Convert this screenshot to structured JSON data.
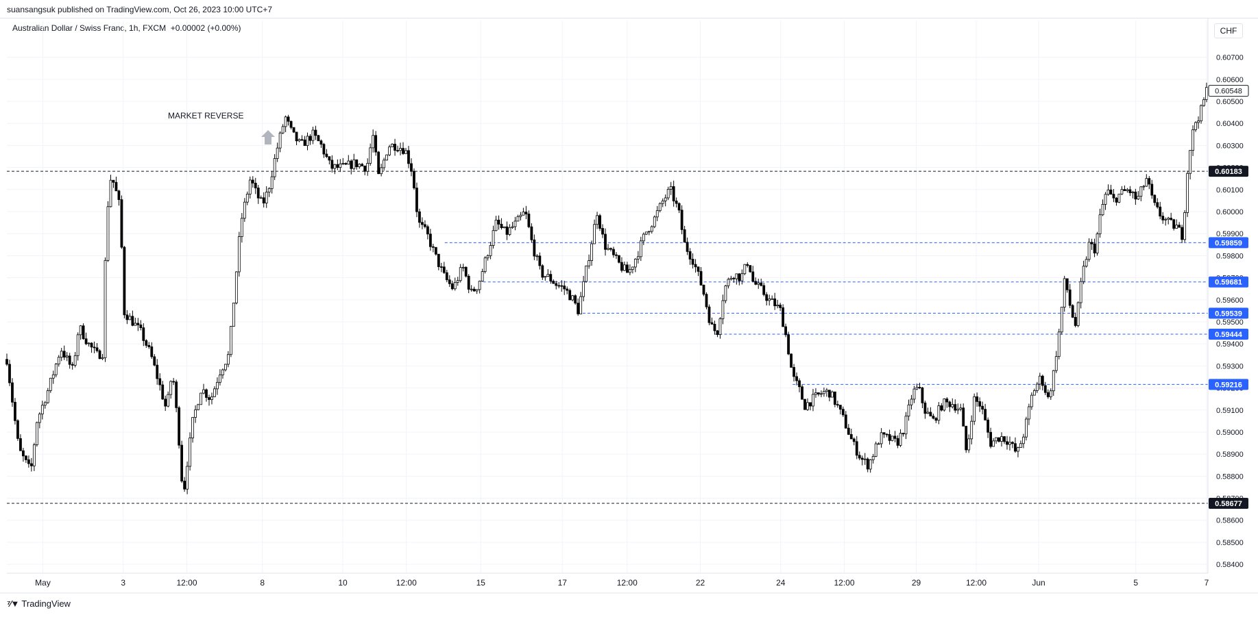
{
  "header": {
    "published": "suansangsuk published on TradingView.com, Oct 26, 2023 10:00 UTC+7",
    "symbol": "Australian Dollar / Swiss Franc, 1h, FXCM",
    "change": "+0.00002 (+0.00%)",
    "currency": "CHF"
  },
  "footer": {
    "brand": "TradingView",
    "logo_icon": "tradingview-logo-icon"
  },
  "chart_data": {
    "type": "candlestick",
    "title": "Australian Dollar / Swiss Franc, 1h, FXCM",
    "ylim": [
      0.5836,
      0.6082
    ],
    "grid": true,
    "y_ticks": [
      "0.60700",
      "0.60600",
      "0.60500",
      "0.60400",
      "0.60300",
      "0.60200",
      "0.60100",
      "0.60000",
      "0.59900",
      "0.59800",
      "0.59700",
      "0.59600",
      "0.59500",
      "0.59400",
      "0.59300",
      "0.59200",
      "0.59100",
      "0.59000",
      "0.58900",
      "0.58800",
      "0.58700",
      "0.58600",
      "0.58500",
      "0.58400"
    ],
    "x_ticks": [
      {
        "label": "May",
        "pos": 0.03
      },
      {
        "label": "3",
        "pos": 0.097
      },
      {
        "label": "12:00",
        "pos": 0.15
      },
      {
        "label": "8",
        "pos": 0.213
      },
      {
        "label": "10",
        "pos": 0.28
      },
      {
        "label": "12:00",
        "pos": 0.333
      },
      {
        "label": "15",
        "pos": 0.395
      },
      {
        "label": "17",
        "pos": 0.463
      },
      {
        "label": "12:00",
        "pos": 0.517
      },
      {
        "label": "22",
        "pos": 0.578
      },
      {
        "label": "24",
        "pos": 0.645
      },
      {
        "label": "12:00",
        "pos": 0.698
      },
      {
        "label": "29",
        "pos": 0.758
      },
      {
        "label": "12:00",
        "pos": 0.808
      },
      {
        "label": "Jun",
        "pos": 0.86
      },
      {
        "label": "5",
        "pos": 0.941
      },
      {
        "label": "7",
        "pos": 1.0
      }
    ],
    "price_path": [
      [
        0.0,
        0.5933
      ],
      [
        0.01,
        0.5892
      ],
      [
        0.02,
        0.5882
      ],
      [
        0.025,
        0.5905
      ],
      [
        0.035,
        0.592
      ],
      [
        0.045,
        0.5938
      ],
      [
        0.055,
        0.5928
      ],
      [
        0.06,
        0.5948
      ],
      [
        0.068,
        0.594
      ],
      [
        0.075,
        0.5935
      ],
      [
        0.08,
        0.5936
      ],
      [
        0.083,
        0.5997
      ],
      [
        0.087,
        0.6017
      ],
      [
        0.093,
        0.6005
      ],
      [
        0.095,
        0.5998
      ],
      [
        0.097,
        0.5955
      ],
      [
        0.105,
        0.595
      ],
      [
        0.112,
        0.5945
      ],
      [
        0.12,
        0.5935
      ],
      [
        0.128,
        0.592
      ],
      [
        0.133,
        0.591
      ],
      [
        0.138,
        0.5928
      ],
      [
        0.143,
        0.59
      ],
      [
        0.147,
        0.587
      ],
      [
        0.15,
        0.5885
      ],
      [
        0.155,
        0.5905
      ],
      [
        0.162,
        0.592
      ],
      [
        0.17,
        0.5915
      ],
      [
        0.178,
        0.5928
      ],
      [
        0.185,
        0.5935
      ],
      [
        0.19,
        0.5965
      ],
      [
        0.195,
        0.5995
      ],
      [
        0.203,
        0.6015
      ],
      [
        0.208,
        0.6008
      ],
      [
        0.213,
        0.6003
      ],
      [
        0.218,
        0.601
      ],
      [
        0.225,
        0.6028
      ],
      [
        0.232,
        0.6043
      ],
      [
        0.238,
        0.6035
      ],
      [
        0.245,
        0.603
      ],
      [
        0.255,
        0.6035
      ],
      [
        0.262,
        0.603
      ],
      [
        0.27,
        0.602
      ],
      [
        0.28,
        0.602
      ],
      [
        0.29,
        0.6022
      ],
      [
        0.3,
        0.602
      ],
      [
        0.305,
        0.6035
      ],
      [
        0.31,
        0.6015
      ],
      [
        0.318,
        0.603
      ],
      [
        0.325,
        0.603
      ],
      [
        0.332,
        0.6028
      ],
      [
        0.338,
        0.6018
      ],
      [
        0.343,
        0.5995
      ],
      [
        0.35,
        0.599
      ],
      [
        0.357,
        0.598
      ],
      [
        0.365,
        0.597
      ],
      [
        0.372,
        0.5965
      ],
      [
        0.38,
        0.5975
      ],
      [
        0.387,
        0.5963
      ],
      [
        0.393,
        0.5967
      ],
      [
        0.4,
        0.598
      ],
      [
        0.408,
        0.5995
      ],
      [
        0.416,
        0.599
      ],
      [
        0.425,
        0.5995
      ],
      [
        0.432,
        0.6
      ],
      [
        0.438,
        0.5985
      ],
      [
        0.445,
        0.5972
      ],
      [
        0.452,
        0.597
      ],
      [
        0.458,
        0.5967
      ],
      [
        0.465,
        0.5965
      ],
      [
        0.472,
        0.596
      ],
      [
        0.476,
        0.5955
      ],
      [
        0.48,
        0.5965
      ],
      [
        0.487,
        0.5985
      ],
      [
        0.492,
        0.6
      ],
      [
        0.498,
        0.5985
      ],
      [
        0.505,
        0.598
      ],
      [
        0.512,
        0.5975
      ],
      [
        0.518,
        0.5972
      ],
      [
        0.525,
        0.598
      ],
      [
        0.532,
        0.599
      ],
      [
        0.54,
        0.5997
      ],
      [
        0.547,
        0.6005
      ],
      [
        0.553,
        0.601
      ],
      [
        0.56,
        0.6
      ],
      [
        0.565,
        0.5985
      ],
      [
        0.572,
        0.5978
      ],
      [
        0.58,
        0.5965
      ],
      [
        0.587,
        0.5948
      ],
      [
        0.592,
        0.5945
      ],
      [
        0.598,
        0.5965
      ],
      [
        0.605,
        0.5972
      ],
      [
        0.612,
        0.597
      ],
      [
        0.618,
        0.5978
      ],
      [
        0.622,
        0.5968
      ],
      [
        0.628,
        0.5965
      ],
      [
        0.635,
        0.596
      ],
      [
        0.64,
        0.5958
      ],
      [
        0.645,
        0.5955
      ],
      [
        0.65,
        0.5942
      ],
      [
        0.655,
        0.5925
      ],
      [
        0.66,
        0.592
      ],
      [
        0.665,
        0.5912
      ],
      [
        0.672,
        0.5915
      ],
      [
        0.68,
        0.5918
      ],
      [
        0.686,
        0.5918
      ],
      [
        0.692,
        0.5912
      ],
      [
        0.698,
        0.5905
      ],
      [
        0.705,
        0.5895
      ],
      [
        0.712,
        0.5888
      ],
      [
        0.718,
        0.5885
      ],
      [
        0.722,
        0.589
      ],
      [
        0.728,
        0.5898
      ],
      [
        0.735,
        0.5897
      ],
      [
        0.742,
        0.5895
      ],
      [
        0.748,
        0.5902
      ],
      [
        0.755,
        0.5918
      ],
      [
        0.76,
        0.592
      ],
      [
        0.765,
        0.591
      ],
      [
        0.772,
        0.5905
      ],
      [
        0.78,
        0.5913
      ],
      [
        0.788,
        0.5913
      ],
      [
        0.795,
        0.591
      ],
      [
        0.8,
        0.589
      ],
      [
        0.806,
        0.5915
      ],
      [
        0.812,
        0.5912
      ],
      [
        0.82,
        0.5895
      ],
      [
        0.828,
        0.5898
      ],
      [
        0.835,
        0.5896
      ],
      [
        0.842,
        0.589
      ],
      [
        0.848,
        0.59
      ],
      [
        0.855,
        0.5918
      ],
      [
        0.862,
        0.5925
      ],
      [
        0.868,
        0.5915
      ],
      [
        0.872,
        0.5925
      ],
      [
        0.877,
        0.5945
      ],
      [
        0.882,
        0.597
      ],
      [
        0.887,
        0.5955
      ],
      [
        0.891,
        0.5948
      ],
      [
        0.896,
        0.597
      ],
      [
        0.902,
        0.5985
      ],
      [
        0.907,
        0.5983
      ],
      [
        0.912,
        0.6
      ],
      [
        0.917,
        0.601
      ],
      [
        0.922,
        0.6005
      ],
      [
        0.928,
        0.6008
      ],
      [
        0.935,
        0.601
      ],
      [
        0.942,
        0.6005
      ],
      [
        0.95,
        0.6015
      ],
      [
        0.956,
        0.6003
      ],
      [
        0.962,
        0.5998
      ],
      [
        0.968,
        0.5995
      ],
      [
        0.975,
        0.5993
      ],
      [
        0.98,
        0.5989
      ],
      [
        0.985,
        0.6025
      ],
      [
        0.99,
        0.604
      ],
      [
        0.995,
        0.6045
      ],
      [
        1.0,
        0.6055
      ]
    ],
    "horizontal_lines": [
      {
        "price": 0.60183,
        "label": "0.60183",
        "color": "#131722",
        "style": "black",
        "x_start": 0.0
      },
      {
        "price": 0.59859,
        "label": "0.59859",
        "color": "#2962ff",
        "style": "blue",
        "x_start": 0.365
      },
      {
        "price": 0.59681,
        "label": "0.59681",
        "color": "#2962ff",
        "style": "blue",
        "x_start": 0.393
      },
      {
        "price": 0.59539,
        "label": "0.59539",
        "color": "#2962ff",
        "style": "blue",
        "x_start": 0.476
      },
      {
        "price": 0.59444,
        "label": "0.59444",
        "color": "#2962ff",
        "style": "blue",
        "x_start": 0.59
      },
      {
        "price": 0.59216,
        "label": "0.59216",
        "color": "#2962ff",
        "style": "blue",
        "x_start": 0.655
      },
      {
        "price": 0.58677,
        "label": "0.58677",
        "color": "#131722",
        "style": "black",
        "x_start": 0.0
      }
    ],
    "last_price": {
      "price": 0.60548,
      "label": "0.60548"
    },
    "annotations": [
      {
        "text": "MARKET REVERSE",
        "arrow": "up-arrow-icon"
      }
    ]
  }
}
